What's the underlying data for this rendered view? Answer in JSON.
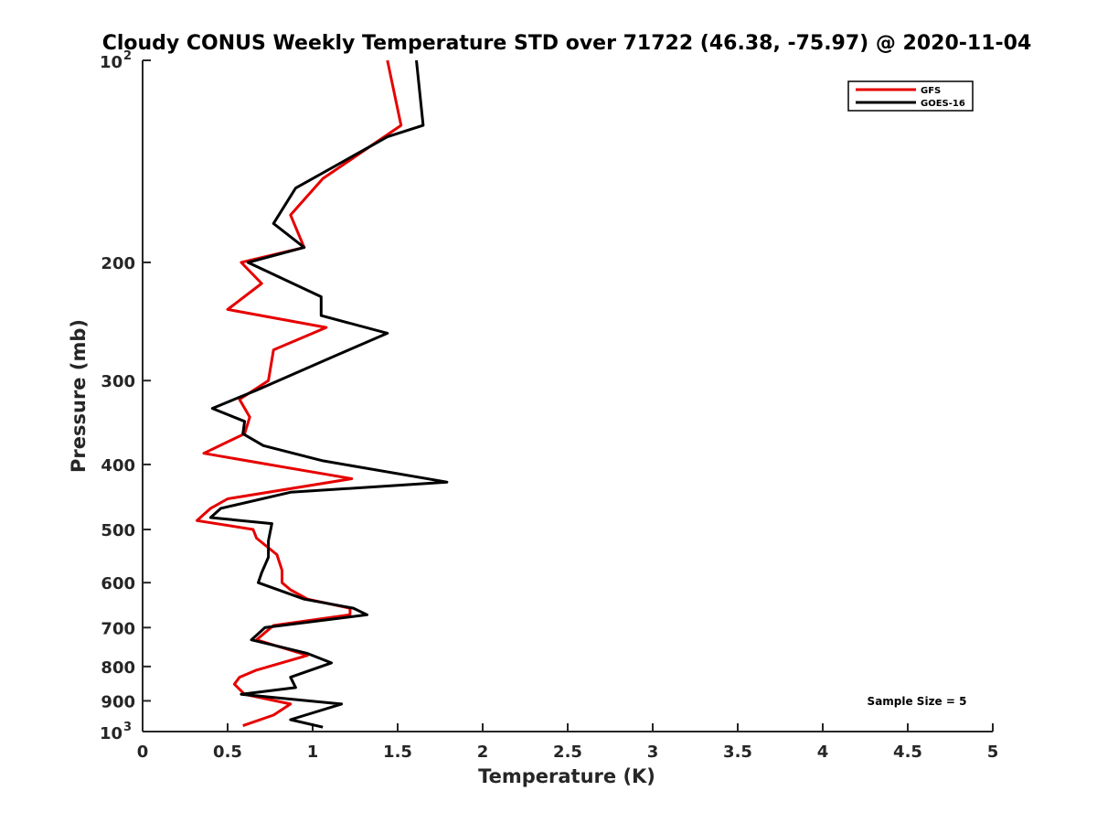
{
  "chart_data": {
    "type": "line",
    "orientation": "vertical-profile",
    "title": "Cloudy CONUS Weekly Temperature STD over 71722 (46.38, -75.97) @ 2020-11-04",
    "xlabel": "Temperature (K)",
    "ylabel": "Pressure (mb)",
    "xlim": [
      0,
      5
    ],
    "ylim": [
      100,
      1000
    ],
    "y_scale": "log",
    "y_reversed": true,
    "x_ticks": [
      "0",
      "0.5",
      "1",
      "1.5",
      "2",
      "2.5",
      "3",
      "3.5",
      "4",
      "4.5",
      "5"
    ],
    "y_ticks": [
      {
        "value": 200,
        "label": "200"
      },
      {
        "value": 300,
        "label": "300"
      },
      {
        "value": 400,
        "label": "400"
      },
      {
        "value": 500,
        "label": "500"
      },
      {
        "value": 600,
        "label": "600"
      },
      {
        "value": 700,
        "label": "700"
      },
      {
        "value": 800,
        "label": "800"
      },
      {
        "value": 900,
        "label": "900"
      }
    ],
    "y_tick_log_labels": [
      {
        "value": 100,
        "base": "10",
        "exp": "2"
      },
      {
        "value": 1000,
        "base": "10",
        "exp": "3"
      }
    ],
    "grid": false,
    "legend_position": "top-right",
    "annotation": "Sample Size = 5",
    "series": [
      {
        "name": "GFS",
        "color": "#e60000",
        "points": [
          [
            1.44,
            100
          ],
          [
            1.52,
            125
          ],
          [
            1.06,
            150
          ],
          [
            0.87,
            170
          ],
          [
            0.95,
            190
          ],
          [
            0.58,
            200
          ],
          [
            0.7,
            215
          ],
          [
            0.5,
            235
          ],
          [
            1.08,
            250
          ],
          [
            0.77,
            270
          ],
          [
            0.74,
            300
          ],
          [
            0.57,
            320
          ],
          [
            0.63,
            340
          ],
          [
            0.6,
            360
          ],
          [
            0.36,
            385
          ],
          [
            0.74,
            400
          ],
          [
            1.23,
            420
          ],
          [
            0.5,
            450
          ],
          [
            0.4,
            465
          ],
          [
            0.32,
            485
          ],
          [
            0.65,
            500
          ],
          [
            0.67,
            515
          ],
          [
            0.79,
            545
          ],
          [
            0.82,
            575
          ],
          [
            0.82,
            600
          ],
          [
            0.87,
            615
          ],
          [
            0.97,
            635
          ],
          [
            1.22,
            655
          ],
          [
            1.22,
            670
          ],
          [
            0.77,
            695
          ],
          [
            0.67,
            730
          ],
          [
            0.97,
            770
          ],
          [
            0.67,
            810
          ],
          [
            0.57,
            830
          ],
          [
            0.54,
            850
          ],
          [
            0.6,
            880
          ],
          [
            0.87,
            910
          ],
          [
            0.77,
            945
          ],
          [
            0.59,
            980
          ]
        ]
      },
      {
        "name": "GOES-16",
        "color": "#000000",
        "points": [
          [
            1.61,
            100
          ],
          [
            1.65,
            125
          ],
          [
            1.44,
            130
          ],
          [
            0.9,
            155
          ],
          [
            0.77,
            175
          ],
          [
            0.95,
            190
          ],
          [
            0.62,
            200
          ],
          [
            1.05,
            225
          ],
          [
            1.05,
            240
          ],
          [
            1.44,
            255
          ],
          [
            1.14,
            275
          ],
          [
            0.67,
            310
          ],
          [
            0.41,
            330
          ],
          [
            0.6,
            345
          ],
          [
            0.59,
            360
          ],
          [
            0.71,
            375
          ],
          [
            1.06,
            395
          ],
          [
            1.79,
            425
          ],
          [
            0.87,
            440
          ],
          [
            0.46,
            465
          ],
          [
            0.4,
            480
          ],
          [
            0.76,
            490
          ],
          [
            0.74,
            520
          ],
          [
            0.74,
            550
          ],
          [
            0.7,
            580
          ],
          [
            0.68,
            600
          ],
          [
            0.95,
            635
          ],
          [
            1.24,
            655
          ],
          [
            1.32,
            670
          ],
          [
            0.72,
            700
          ],
          [
            0.64,
            730
          ],
          [
            0.97,
            765
          ],
          [
            1.11,
            790
          ],
          [
            0.87,
            830
          ],
          [
            0.9,
            860
          ],
          [
            0.58,
            880
          ],
          [
            1.17,
            910
          ],
          [
            0.87,
            960
          ],
          [
            1.06,
            985
          ]
        ]
      }
    ]
  }
}
